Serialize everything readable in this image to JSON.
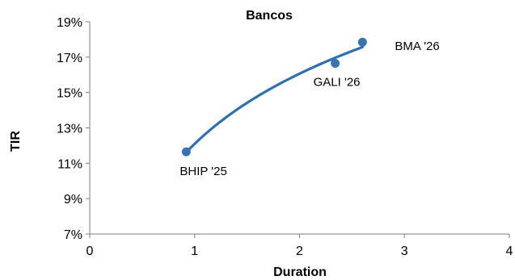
{
  "chart_data": {
    "type": "scatter",
    "title": "Bancos",
    "xlabel": "Duration",
    "ylabel": "TIR",
    "xlim": [
      0,
      4
    ],
    "ylim": [
      7,
      19
    ],
    "x_ticks": [
      0,
      1,
      2,
      3,
      4
    ],
    "y_ticks": [
      7,
      9,
      11,
      13,
      15,
      17,
      19
    ],
    "y_tick_format": "percent",
    "grid": false,
    "legend": "none",
    "series": [
      {
        "points": [
          {
            "label": "BHIP '25",
            "x": 0.92,
            "y": 11.65
          },
          {
            "label": "GALI '26",
            "x": 2.34,
            "y": 16.65
          },
          {
            "label": "BMA '26",
            "x": 2.6,
            "y": 17.85
          }
        ],
        "color": "#3674b5"
      }
    ],
    "trendline": {
      "type": "logarithmic",
      "x_range": [
        0.92,
        2.6
      ],
      "color": "#2e6fb0"
    }
  }
}
